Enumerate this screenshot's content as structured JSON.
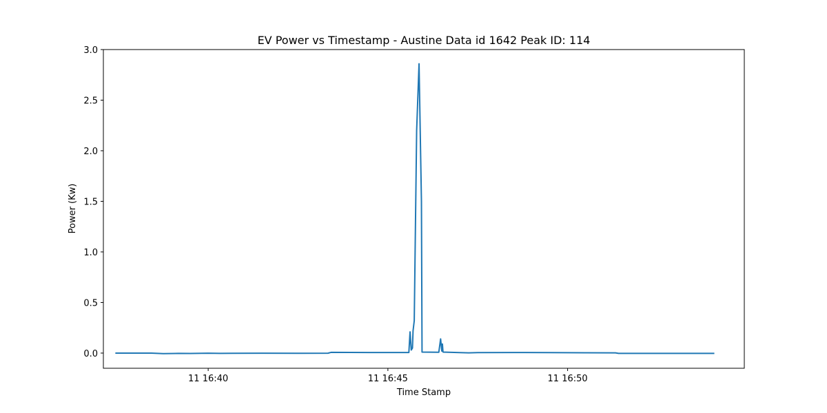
{
  "chart_data": {
    "type": "line",
    "title": "EV Power vs Timestamp - Austine Data id 1642 Peak ID: 114",
    "xlabel": "Time Stamp",
    "ylabel": "Power (Kw)",
    "xlim": [
      "11 16:37:05",
      "11 16:54:55"
    ],
    "ylim": [
      -0.15,
      3.0
    ],
    "grid": false,
    "x_ticks": [
      {
        "label": "11 16:40",
        "time": "11 16:40:00"
      },
      {
        "label": "11 16:45",
        "time": "11 16:45:00"
      },
      {
        "label": "11 16:50",
        "time": "11 16:50:00"
      }
    ],
    "y_ticks": [
      {
        "label": "0.0",
        "value": 0.0
      },
      {
        "label": "0.5",
        "value": 0.5
      },
      {
        "label": "1.0",
        "value": 1.0
      },
      {
        "label": "1.5",
        "value": 1.5
      },
      {
        "label": "2.0",
        "value": 2.0
      },
      {
        "label": "2.5",
        "value": 2.5
      },
      {
        "label": "3.0",
        "value": 3.0
      }
    ],
    "series": [
      {
        "color": "#1f77b4",
        "points": [
          {
            "x": "11 16:37:25",
            "y": 0.0
          },
          {
            "x": "11 16:38:25",
            "y": 0.0
          },
          {
            "x": "11 16:38:45",
            "y": -0.005
          },
          {
            "x": "11 16:39:10",
            "y": -0.003
          },
          {
            "x": "11 16:39:30",
            "y": -0.004
          },
          {
            "x": "11 16:40:00",
            "y": -0.001
          },
          {
            "x": "11 16:40:20",
            "y": -0.003
          },
          {
            "x": "11 16:40:40",
            "y": -0.002
          },
          {
            "x": "11 16:41:30",
            "y": -0.001
          },
          {
            "x": "11 16:42:30",
            "y": -0.002
          },
          {
            "x": "11 16:43:20",
            "y": -0.001
          },
          {
            "x": "11 16:43:25",
            "y": 0.007
          },
          {
            "x": "11 16:44:30",
            "y": 0.006
          },
          {
            "x": "11 16:45:35",
            "y": 0.006
          },
          {
            "x": "11 16:45:37",
            "y": 0.21
          },
          {
            "x": "11 16:45:39",
            "y": 0.03
          },
          {
            "x": "11 16:45:41",
            "y": 0.05
          },
          {
            "x": "11 16:45:42",
            "y": 0.22
          },
          {
            "x": "11 16:45:44",
            "y": 0.32
          },
          {
            "x": "11 16:45:48",
            "y": 2.2
          },
          {
            "x": "11 16:45:52",
            "y": 2.86
          },
          {
            "x": "11 16:45:56",
            "y": 1.5
          },
          {
            "x": "11 16:45:57",
            "y": 0.01
          },
          {
            "x": "11 16:46:25",
            "y": 0.008
          },
          {
            "x": "11 16:46:28",
            "y": 0.14
          },
          {
            "x": "11 16:46:30",
            "y": 0.02
          },
          {
            "x": "11 16:46:31",
            "y": 0.09
          },
          {
            "x": "11 16:46:32",
            "y": 0.01
          },
          {
            "x": "11 16:47:00",
            "y": 0.005
          },
          {
            "x": "11 16:47:15",
            "y": 0.002
          },
          {
            "x": "11 16:47:30",
            "y": 0.005
          },
          {
            "x": "11 16:48:30",
            "y": 0.006
          },
          {
            "x": "11 16:49:30",
            "y": 0.005
          },
          {
            "x": "11 16:50:30",
            "y": 0.003
          },
          {
            "x": "11 16:51:20",
            "y": 0.002
          },
          {
            "x": "11 16:51:25",
            "y": -0.003
          },
          {
            "x": "11 16:52:30",
            "y": -0.003
          },
          {
            "x": "11 16:53:30",
            "y": -0.003
          },
          {
            "x": "11 16:54:05",
            "y": -0.003
          }
        ]
      }
    ]
  }
}
